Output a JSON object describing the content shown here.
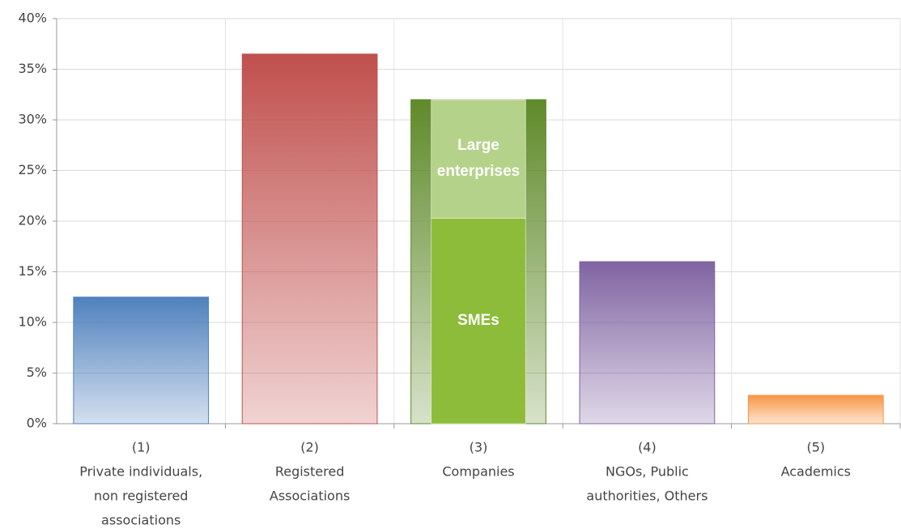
{
  "chart_data": {
    "type": "bar",
    "categories": [
      [
        "(1)",
        "Private individuals,",
        "non registered",
        "associations"
      ],
      [
        "(2)",
        "Registered",
        "Associations"
      ],
      [
        "(3)",
        "Companies"
      ],
      [
        "(4)",
        "NGOs, Public",
        "authorities, Others"
      ],
      [
        "(5)",
        "Academics"
      ]
    ],
    "values": [
      12.5,
      36.5,
      32,
      16,
      2.8
    ],
    "colors": [
      "#4f81bd",
      "#c0504d",
      "#5f8a2a",
      "#8064a2",
      "#f79646"
    ],
    "breakdown": {
      "category": 2,
      "segments": [
        {
          "name": [
            "SMEs"
          ],
          "value": 20.3,
          "color": "#8cbc3a"
        },
        {
          "name": [
            "Large",
            "enterprises"
          ],
          "value": 11.7,
          "color": "#b5d28a"
        }
      ]
    },
    "ylim": [
      0,
      40
    ],
    "yticks": [
      {
        "value": 0,
        "label": "0%"
      },
      {
        "value": 5,
        "label": "5%"
      },
      {
        "value": 10,
        "label": "10%"
      },
      {
        "value": 15,
        "label": "15%"
      },
      {
        "value": 20,
        "label": "20%"
      },
      {
        "value": 25,
        "label": "25%"
      },
      {
        "value": 30,
        "label": "30%"
      },
      {
        "value": 35,
        "label": "35%"
      },
      {
        "value": 40,
        "label": "40%"
      }
    ],
    "grid": true
  }
}
